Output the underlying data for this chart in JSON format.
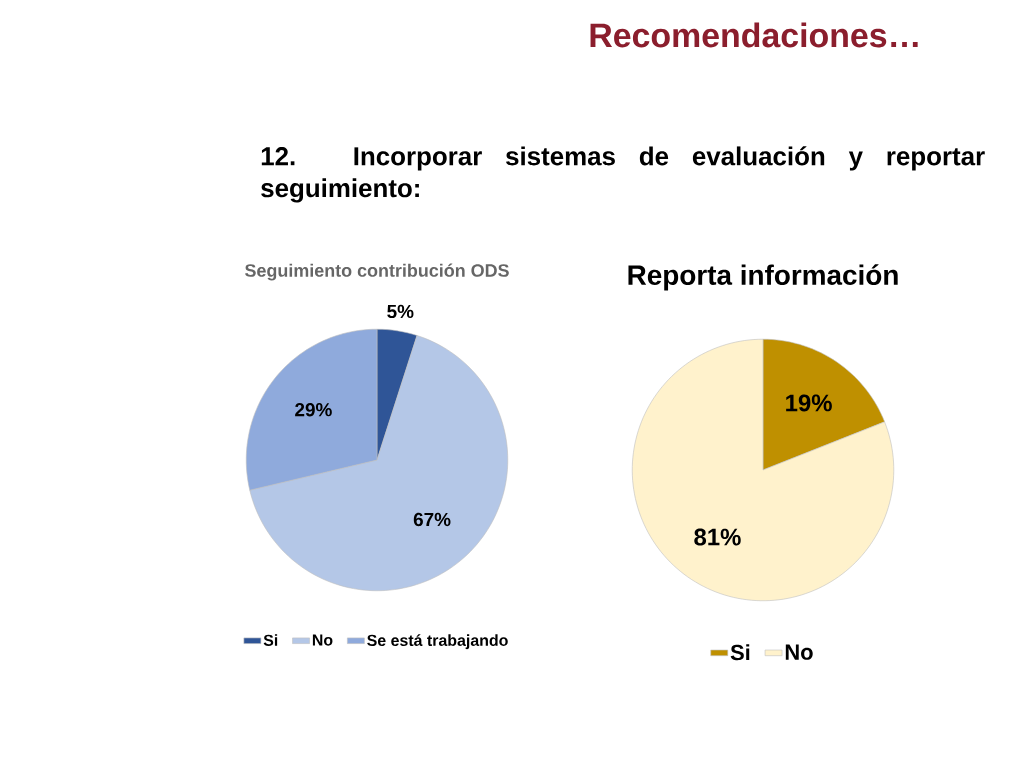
{
  "chart_data": [
    {
      "type": "other",
      "title": "Recomendaciones…",
      "annotations": [
        "12. Incorporar sistemas de evaluación y reportar seguimiento:"
      ]
    },
    {
      "type": "pie",
      "title": "Seguimiento contribución ODS",
      "categories": [
        "Si",
        "No",
        "Se está trabajando"
      ],
      "values": [
        5,
        67,
        29
      ],
      "value_labels": [
        "5%",
        "67%",
        "29%"
      ],
      "colors": [
        "#2f5597",
        "#b4c7e7",
        "#8faadc"
      ],
      "legend": "bottom"
    },
    {
      "type": "pie",
      "title": "Reporta información",
      "categories": [
        "Si",
        "No"
      ],
      "values": [
        19,
        81
      ],
      "value_labels": [
        "19%",
        "81%"
      ],
      "colors": [
        "#bf9000",
        "#fff2cc"
      ],
      "legend": "bottom"
    }
  ]
}
